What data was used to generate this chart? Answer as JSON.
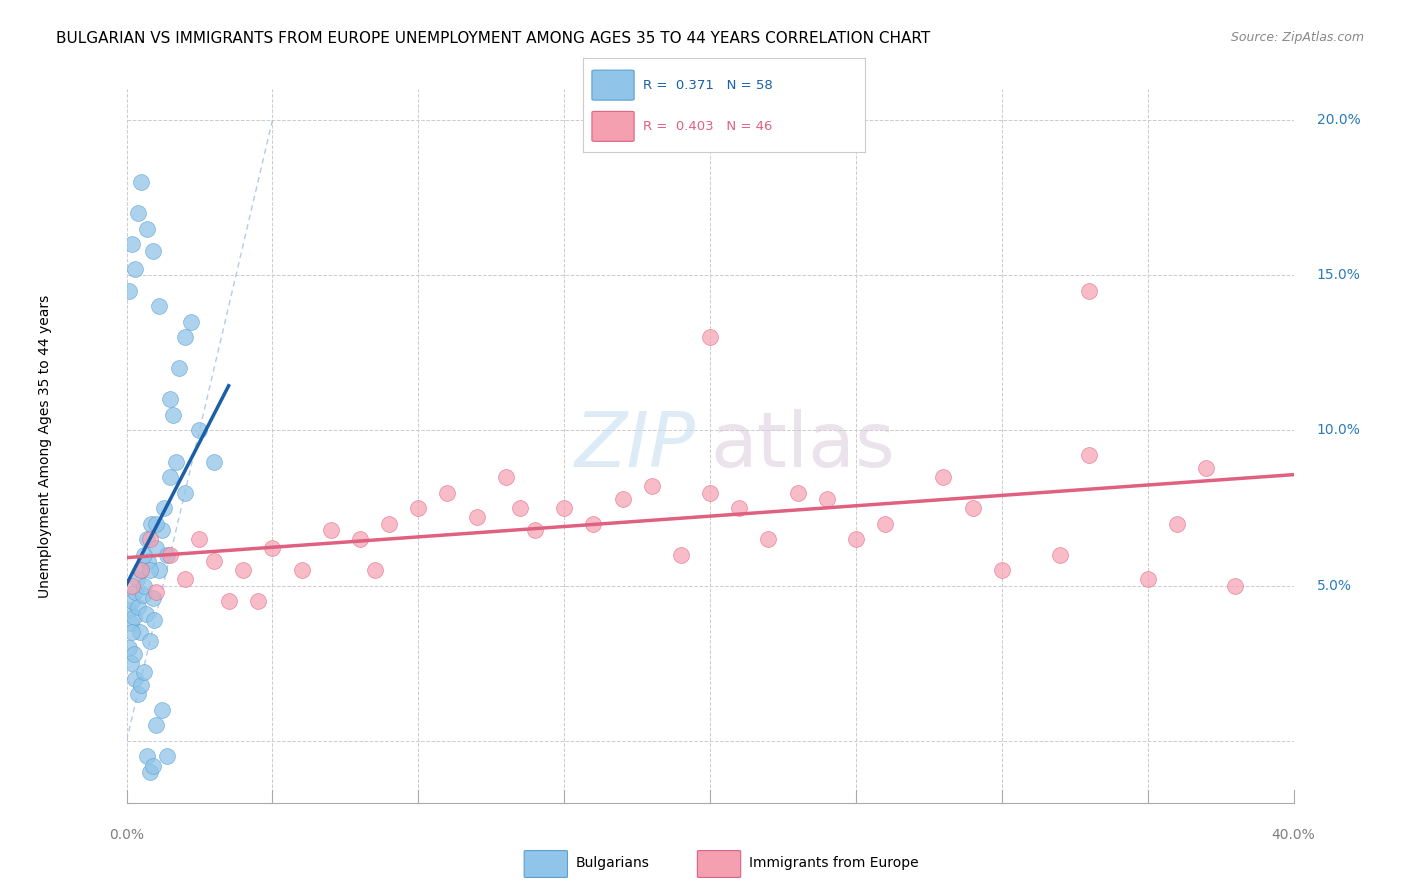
{
  "title": "BULGARIAN VS IMMIGRANTS FROM EUROPE UNEMPLOYMENT AMONG AGES 35 TO 44 YEARS CORRELATION CHART",
  "source": "Source: ZipAtlas.com",
  "ylabel": "Unemployment Among Ages 35 to 44 years",
  "blue_color": "#90c4e8",
  "blue_edge": "#5aa0d0",
  "blue_line": "#1a5fa8",
  "pink_color": "#f4a0b0",
  "pink_edge": "#e06080",
  "pink_line": "#e06080",
  "diag_color": "#90b8e0",
  "r_blue": "0.371",
  "n_blue": "58",
  "r_pink": "0.403",
  "n_pink": "46",
  "xlim": [
    0,
    40
  ],
  "ylim": [
    -2,
    21
  ],
  "yticks": [
    0,
    5,
    10,
    15,
    20
  ],
  "ytick_labels": [
    "",
    "5.0%",
    "10.0%",
    "15.0%",
    "20.0%"
  ],
  "xtick_label_left": "0.0%",
  "xtick_label_right": "40.0%",
  "legend_labels": [
    "Bulgarians",
    "Immigrants from Europe"
  ],
  "grid_color": "#cccccc",
  "title_fontsize": 11,
  "source_fontsize": 9,
  "axis_label_fontsize": 10,
  "right_tick_color": "#2b7bba",
  "blue_x": [
    0.1,
    0.15,
    0.2,
    0.25,
    0.3,
    0.35,
    0.4,
    0.45,
    0.5,
    0.55,
    0.6,
    0.65,
    0.7,
    0.75,
    0.8,
    0.85,
    0.9,
    0.95,
    1.0,
    1.1,
    1.2,
    1.3,
    1.4,
    1.5,
    1.6,
    1.7,
    1.8,
    2.0,
    2.2,
    2.5,
    0.1,
    0.15,
    0.2,
    0.25,
    0.3,
    0.4,
    0.5,
    0.6,
    0.7,
    0.8,
    0.9,
    1.0,
    1.2,
    1.4,
    0.1,
    0.2,
    0.3,
    0.4,
    0.5,
    0.7,
    0.9,
    1.1,
    1.5,
    2.0,
    3.0,
    0.6,
    0.8,
    1.0
  ],
  "blue_y": [
    4.2,
    3.8,
    4.5,
    4.0,
    4.8,
    5.2,
    4.3,
    3.5,
    5.5,
    4.7,
    5.0,
    4.1,
    6.5,
    5.8,
    3.2,
    7.0,
    4.6,
    3.9,
    6.2,
    5.5,
    6.8,
    7.5,
    6.0,
    8.5,
    10.5,
    9.0,
    12.0,
    8.0,
    13.5,
    10.0,
    3.0,
    2.5,
    3.5,
    2.8,
    2.0,
    1.5,
    1.8,
    2.2,
    -0.5,
    -1.0,
    -0.8,
    0.5,
    1.0,
    -0.5,
    14.5,
    16.0,
    15.2,
    17.0,
    18.0,
    16.5,
    15.8,
    14.0,
    11.0,
    13.0,
    9.0,
    6.0,
    5.5,
    7.0
  ],
  "pink_x": [
    0.2,
    0.5,
    1.0,
    1.5,
    2.0,
    2.5,
    3.0,
    3.5,
    4.0,
    5.0,
    6.0,
    7.0,
    8.0,
    9.0,
    10.0,
    11.0,
    12.0,
    13.0,
    14.0,
    15.0,
    16.0,
    17.0,
    18.0,
    19.0,
    20.0,
    21.0,
    22.0,
    23.0,
    24.0,
    25.0,
    26.0,
    28.0,
    29.0,
    30.0,
    32.0,
    33.0,
    35.0,
    36.0,
    37.0,
    38.0,
    0.8,
    4.5,
    8.5,
    13.5,
    20.0,
    33.0
  ],
  "pink_y": [
    5.0,
    5.5,
    4.8,
    6.0,
    5.2,
    6.5,
    5.8,
    4.5,
    5.5,
    6.2,
    5.5,
    6.8,
    6.5,
    7.0,
    7.5,
    8.0,
    7.2,
    8.5,
    6.8,
    7.5,
    7.0,
    7.8,
    8.2,
    6.0,
    8.0,
    7.5,
    6.5,
    8.0,
    7.8,
    6.5,
    7.0,
    8.5,
    7.5,
    5.5,
    6.0,
    9.2,
    5.2,
    7.0,
    8.8,
    5.0,
    6.5,
    4.5,
    5.5,
    7.5,
    13.0,
    14.5
  ]
}
